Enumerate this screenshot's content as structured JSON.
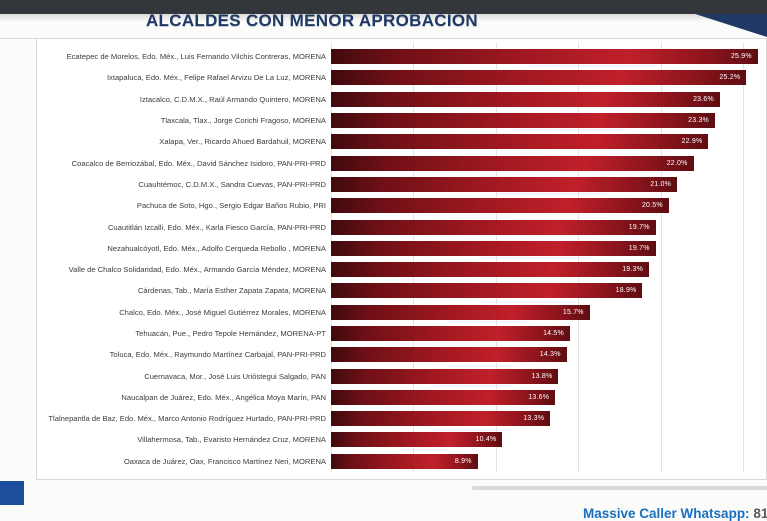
{
  "header": {
    "title": "ALCALDES CON MENOR APROBACION",
    "title_color": "#1f3864",
    "top_bar_color": "#33373b",
    "corner_accent_color": "#203864"
  },
  "chart_data": {
    "type": "bar",
    "orientation": "horizontal",
    "title": "ALCALDES CON MENOR APROBACION",
    "unit": "%",
    "xlim": [
      0,
      25
    ],
    "gridline_step": 5,
    "grid": true,
    "bar_color_gradient": [
      "#400a0e",
      "#a01820",
      "#c0202a",
      "#5e0d12"
    ],
    "value_label_color": "#ffffff",
    "categories": [
      "Ecatepec de Morelos, Edo. Méx., Luis Fernando Vilchis Contreras, MORENA",
      "Ixtapaluca, Edo. Méx., Felipe Rafael Arvizu De La Luz, MORENA",
      "Iztacalco, C.D.M.X., Raúl Armando Quintero, MORENA",
      "Tlaxcala, Tlax., Jorge Corichi Fragoso, MORENA",
      "Xalapa, Ver., Ricardo Ahued Bardahuil, MORENA",
      "Coacalco de Berriozábal, Edo. Méx., David Sánchez Isidoro, PAN-PRI-PRD",
      "Cuauhtémoc, C.D.M.X., Sandra Cuevas, PAN-PRI-PRD",
      "Pachuca de Soto, Hgo., Sergio Edgar Baños Rubio, PRI",
      "Cuautitlán Izcalli, Edo. Méx., Karla Fiesco García, PAN-PRI-PRD",
      "Nezahualcóyotl, Edo. Méx., Adolfo Cerqueda Rebollo , MORENA",
      "Valle de Chalco Solidaridad, Edo. Méx., Armando García Méndez, MORENA",
      "Cárdenas, Tab., María Esther Zapata Zapata, MORENA",
      "Chalco, Edo. Méx., José Miguel Gutiérrez Morales, MORENA",
      "Tehuacán, Pue., Pedro Tepole Hernández, MORENA-PT",
      "Toluca, Edo. Méx., Raymundo Martínez Carbajal, PAN-PRI-PRD",
      "Cuernavaca, Mor., José Luis Urióstegui Salgado, PAN",
      "Naucalpan de Juárez, Edo. Méx., Angélica Moya Marín, PAN",
      "Tlalnepantla de Baz, Edo. Méx., Marco Antonio Rodríguez Hurtado, PAN-PRI-PRD",
      "Villahermosa, Tab., Evaristo Hernández Cruz, MORENA",
      "Oaxaca de Juárez, Oax, Francisco Martínez Neri, MORENA"
    ],
    "values": [
      25.9,
      25.2,
      23.6,
      23.3,
      22.9,
      22.0,
      21.0,
      20.5,
      19.7,
      19.7,
      19.3,
      18.9,
      15.7,
      14.5,
      14.3,
      13.8,
      13.6,
      13.3,
      10.4,
      8.9
    ]
  },
  "footer": {
    "contact_label": "Massive Caller Whatsapp: ",
    "contact_number": "81",
    "accent_square_color": "#1d4e9e"
  }
}
